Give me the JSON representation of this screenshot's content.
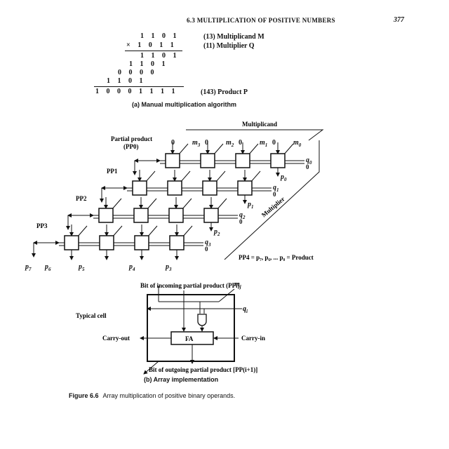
{
  "header": {
    "section": "6.3   MULTIPLICATION OF POSITIVE NUMBERS",
    "page": "377"
  },
  "manual": {
    "rows": [
      "1 1 0 1",
      "× 1 0 1 1",
      "1 1 0 1",
      "1 1 0 1",
      "0 0 0 0",
      "1 1 0 1",
      "1 0 0 0 1 1 1 1"
    ],
    "multiplicand_label": "(13)  Multiplicand M",
    "multiplier_label": "(11)  Multiplier Q",
    "product_label": "(143)  Product P",
    "caption": "(a) Manual multiplication algorithm"
  },
  "array": {
    "multiplicand": "Multiplicand",
    "multiplier": "Multiplier",
    "partial_product_label": "Partial product",
    "pp0": "(PP0)",
    "pp1": "PP1",
    "pp2": "PP2",
    "pp3": "PP3",
    "top_inputs": [
      "0",
      "m",
      "0",
      "m",
      "0",
      "m",
      "0",
      "m"
    ],
    "top_input_subs": [
      "",
      "3",
      "",
      "2",
      "",
      "1",
      "",
      "0"
    ],
    "q": [
      "q",
      "q",
      "q",
      "q"
    ],
    "q_subs": [
      "0",
      "1",
      "2",
      "3"
    ],
    "right_zero": "0",
    "p_bottom": [
      "p",
      "p",
      "p",
      "p",
      "p"
    ],
    "p_bottom_subs": [
      "7",
      "6",
      "5",
      "4",
      "3"
    ],
    "p_right": [
      "p",
      "p",
      "p"
    ],
    "p_right_subs": [
      "0",
      "1",
      "2"
    ],
    "pp4_text": "PP4 = p₇, p₆, ... p₀ = Product"
  },
  "cell": {
    "incoming": "Bit of incoming partial product (PPi)",
    "mj": "m",
    "mj_sub": "j",
    "qi": "q",
    "qi_sub": "i",
    "typical": "Typical cell",
    "carry_out": "Carry-out",
    "carry_in": "Carry-in",
    "fa": "FA",
    "outgoing": "Bit of outgoing partial product [PP(i+1)]",
    "caption": "(b) Array implementation"
  },
  "figure": {
    "label": "Figure 6.6",
    "text": "Array multiplication of positive binary operands."
  }
}
